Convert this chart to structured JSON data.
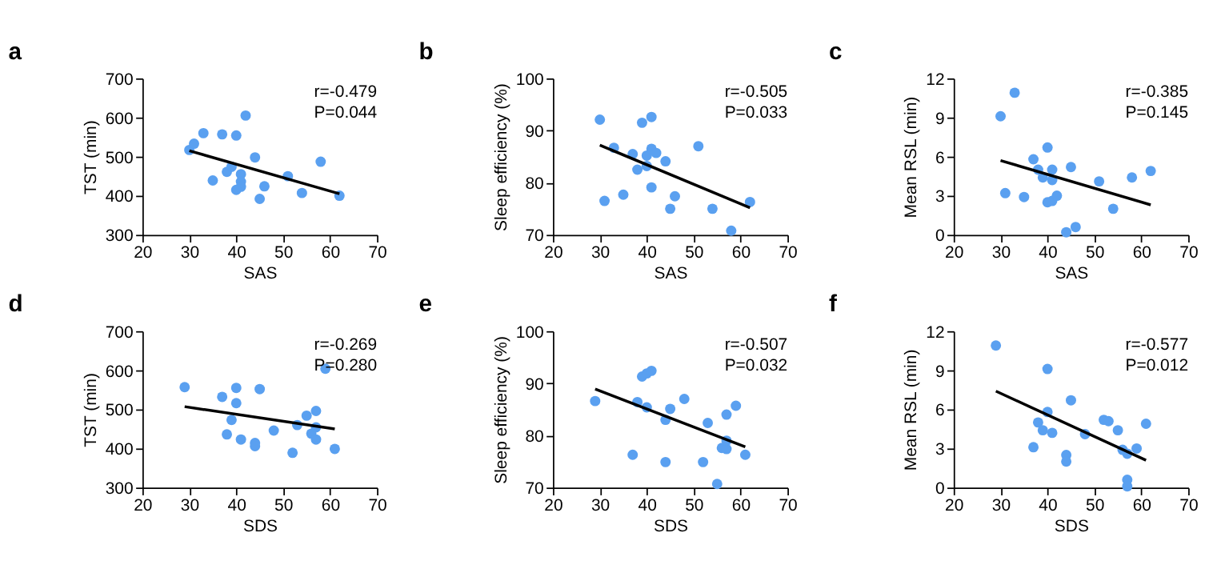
{
  "chart_data": [
    {
      "type": "scatter",
      "title": "a",
      "xlabel": "SAS",
      "ylabel": "TST (min)",
      "xlim": [
        20,
        70
      ],
      "xticks": [
        20,
        30,
        40,
        50,
        60,
        70
      ],
      "ylim": [
        300,
        700
      ],
      "yticks": [
        300,
        400,
        500,
        600,
        700
      ],
      "grid": false,
      "annotations": [
        "r=-0.479",
        "P=0.044"
      ],
      "series": [
        {
          "type": "scatter",
          "marker": "circle",
          "color": "#5aa0f0",
          "x": [
            30,
            31,
            33,
            37,
            40,
            42,
            35,
            38,
            39,
            41,
            41,
            41,
            40,
            44,
            46,
            45,
            51,
            54,
            58,
            62
          ],
          "values": [
            517,
            533,
            560,
            557,
            554,
            605,
            439,
            461,
            474,
            455,
            436,
            423,
            415,
            498,
            424,
            392,
            450,
            407,
            487,
            400
          ]
        },
        {
          "type": "line",
          "marker": "none",
          "color": "#000000",
          "x": [
            30,
            62
          ],
          "values": [
            515,
            405
          ]
        }
      ]
    },
    {
      "type": "scatter",
      "title": "b",
      "xlabel": "SAS",
      "ylabel": "Sleep efficiency (%)",
      "xlim": [
        20,
        70
      ],
      "xticks": [
        20,
        30,
        40,
        50,
        60,
        70
      ],
      "ylim": [
        70,
        100
      ],
      "yticks": [
        70,
        80,
        90,
        100
      ],
      "grid": false,
      "annotations": [
        "r=-0.505",
        "P=0.033"
      ],
      "series": [
        {
          "type": "scatter",
          "marker": "circle",
          "color": "#5aa0f0",
          "x": [
            30,
            31,
            33,
            35,
            37,
            38,
            39,
            40,
            40,
            41,
            41,
            41,
            42,
            44,
            45,
            46,
            51,
            54,
            58,
            62
          ],
          "values": [
            92.1,
            76.5,
            86.7,
            77.7,
            85.5,
            82.5,
            91.5,
            85.2,
            83.2,
            92.6,
            86.5,
            79.1,
            85.7,
            84.1,
            75.0,
            77.4,
            87.0,
            75.0,
            70.8,
            76.3
          ]
        },
        {
          "type": "line",
          "marker": "none",
          "color": "#000000",
          "x": [
            30,
            62
          ],
          "values": [
            87.2,
            75.2
          ]
        }
      ]
    },
    {
      "type": "scatter",
      "title": "c",
      "xlabel": "SAS",
      "ylabel": "Mean RSL (min)",
      "xlim": [
        20,
        70
      ],
      "xticks": [
        20,
        30,
        40,
        50,
        60,
        70
      ],
      "ylim": [
        0,
        12
      ],
      "yticks": [
        0,
        3,
        6,
        9,
        12
      ],
      "grid": false,
      "annotations": [
        "r=-0.385",
        "P=0.145"
      ],
      "series": [
        {
          "type": "scatter",
          "marker": "circle",
          "color": "#5aa0f0",
          "x": [
            30,
            33,
            31,
            35,
            37,
            38,
            39,
            40,
            40,
            41,
            41,
            41,
            42,
            44,
            45,
            46,
            51,
            54,
            58,
            62
          ],
          "values": [
            9.1,
            10.9,
            3.2,
            2.9,
            5.8,
            5.0,
            4.4,
            6.7,
            2.5,
            5.0,
            4.2,
            2.6,
            3.0,
            0.2,
            5.2,
            0.6,
            4.1,
            2.0,
            4.4,
            4.9
          ]
        },
        {
          "type": "line",
          "marker": "none",
          "color": "#000000",
          "x": [
            30,
            62
          ],
          "values": [
            5.7,
            2.3
          ]
        }
      ]
    },
    {
      "type": "scatter",
      "title": "d",
      "xlabel": "SDS",
      "ylabel": "TST (min)",
      "xlim": [
        20,
        70
      ],
      "xticks": [
        20,
        30,
        40,
        50,
        60,
        70
      ],
      "ylim": [
        300,
        700
      ],
      "yticks": [
        300,
        400,
        500,
        600,
        700
      ],
      "grid": false,
      "annotations": [
        "r=-0.269",
        "P=0.280"
      ],
      "series": [
        {
          "type": "scatter",
          "marker": "circle",
          "color": "#5aa0f0",
          "x": [
            29,
            37,
            40,
            40,
            45,
            39,
            38,
            41,
            44,
            44,
            48,
            52,
            53,
            55,
            56,
            57,
            57,
            57,
            59,
            61
          ],
          "values": [
            557,
            532,
            555,
            516,
            552,
            473,
            436,
            423,
            414,
            406,
            446,
            389,
            460,
            484,
            438,
            496,
            454,
            423,
            604,
            399
          ]
        },
        {
          "type": "line",
          "marker": "none",
          "color": "#000000",
          "x": [
            29,
            61
          ],
          "values": [
            507,
            450
          ]
        }
      ]
    },
    {
      "type": "scatter",
      "title": "e",
      "xlabel": "SDS",
      "ylabel": "Sleep efficiency (%)",
      "xlim": [
        20,
        70
      ],
      "xticks": [
        20,
        30,
        40,
        50,
        60,
        70
      ],
      "ylim": [
        70,
        100
      ],
      "yticks": [
        70,
        80,
        90,
        100
      ],
      "grid": false,
      "annotations": [
        "r=-0.507",
        "P=0.032"
      ],
      "series": [
        {
          "type": "scatter",
          "marker": "circle",
          "color": "#5aa0f0",
          "x": [
            29,
            37,
            38,
            39,
            40,
            41,
            40,
            44,
            44,
            45,
            48,
            52,
            53,
            55,
            56,
            57,
            57,
            57,
            59,
            61
          ],
          "values": [
            86.6,
            76.3,
            86.4,
            91.3,
            91.9,
            92.4,
            85.4,
            83.0,
            74.9,
            85.1,
            87.0,
            74.9,
            82.4,
            70.7,
            77.6,
            77.4,
            79.0,
            84.0,
            85.7,
            76.3
          ]
        },
        {
          "type": "line",
          "marker": "none",
          "color": "#000000",
          "x": [
            29,
            61
          ],
          "values": [
            88.9,
            77.8
          ]
        }
      ]
    },
    {
      "type": "scatter",
      "title": "f",
      "xlabel": "SDS",
      "ylabel": "Mean RSL (min)",
      "xlim": [
        20,
        70
      ],
      "xticks": [
        20,
        30,
        40,
        50,
        60,
        70
      ],
      "ylim": [
        0,
        12
      ],
      "yticks": [
        0,
        3,
        6,
        9,
        12
      ],
      "grid": false,
      "annotations": [
        "r=-0.577",
        "P=0.012"
      ],
      "series": [
        {
          "type": "scatter",
          "marker": "circle",
          "color": "#5aa0f0",
          "x": [
            29,
            40,
            37,
            38,
            39,
            40,
            41,
            44,
            44,
            45,
            48,
            52,
            53,
            55,
            56,
            57,
            57,
            57,
            59,
            61
          ],
          "values": [
            10.9,
            9.1,
            3.1,
            5.0,
            4.4,
            5.8,
            4.2,
            2.5,
            2.0,
            6.7,
            4.1,
            5.2,
            5.1,
            4.4,
            2.9,
            2.6,
            0.6,
            0.1,
            3.0,
            4.9
          ]
        },
        {
          "type": "line",
          "marker": "none",
          "color": "#000000",
          "x": [
            29,
            61
          ],
          "values": [
            7.4,
            2.1
          ]
        }
      ]
    }
  ]
}
